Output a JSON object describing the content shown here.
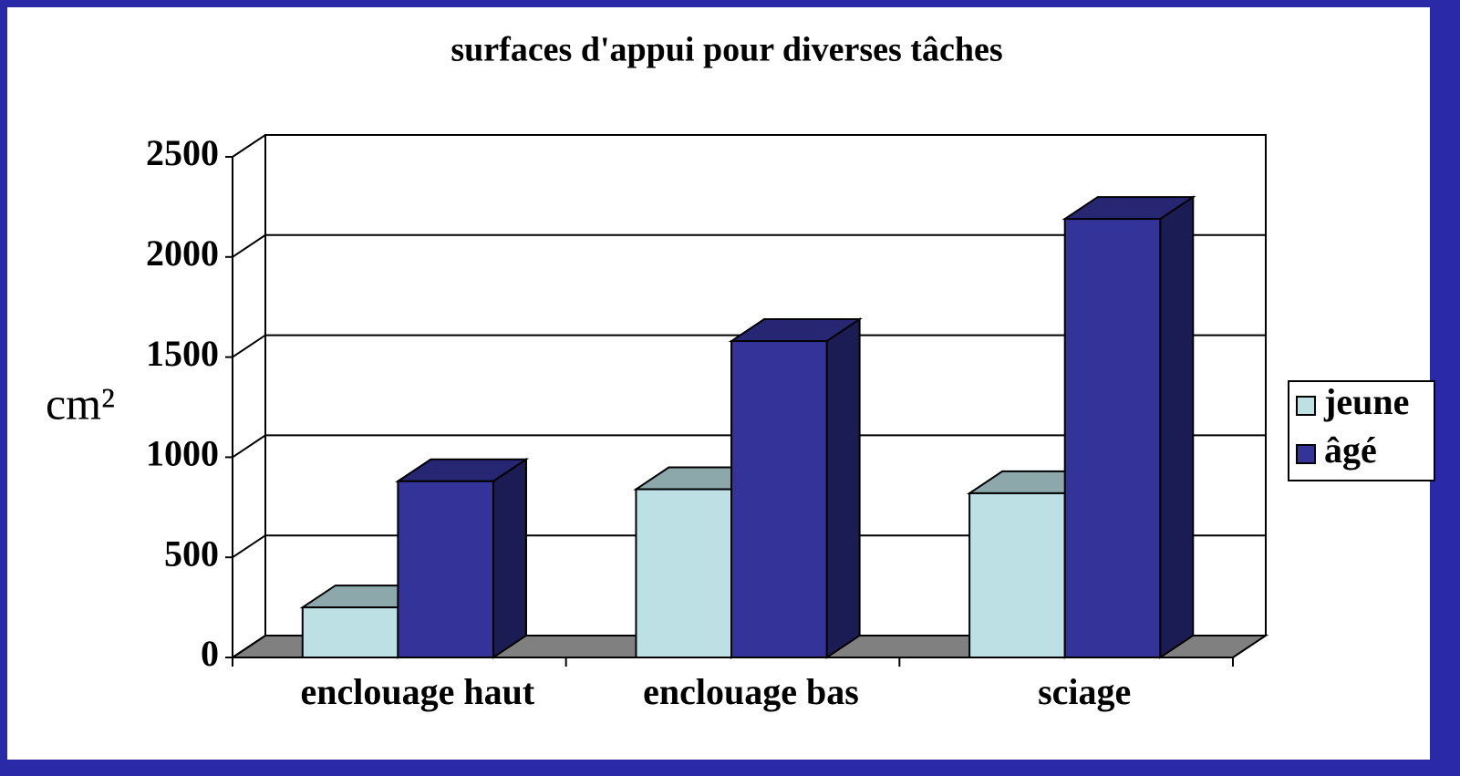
{
  "chart_data": {
    "type": "bar3d",
    "title": "surfaces d'appui pour diverses tâches",
    "y_label": "cm²",
    "categories": [
      "enclouage haut",
      "enclouage bas",
      "sciage"
    ],
    "series": [
      {
        "name": "jeune",
        "color": "#bce0e4",
        "values": [
          250,
          840,
          820
        ]
      },
      {
        "name": "âgé",
        "color": "#333399",
        "values": [
          880,
          1580,
          2190
        ]
      }
    ],
    "ylim": [
      0,
      2500
    ],
    "yticks": [
      0,
      500,
      1000,
      1500,
      2000,
      2500
    ],
    "grid": true,
    "legend": "right"
  }
}
